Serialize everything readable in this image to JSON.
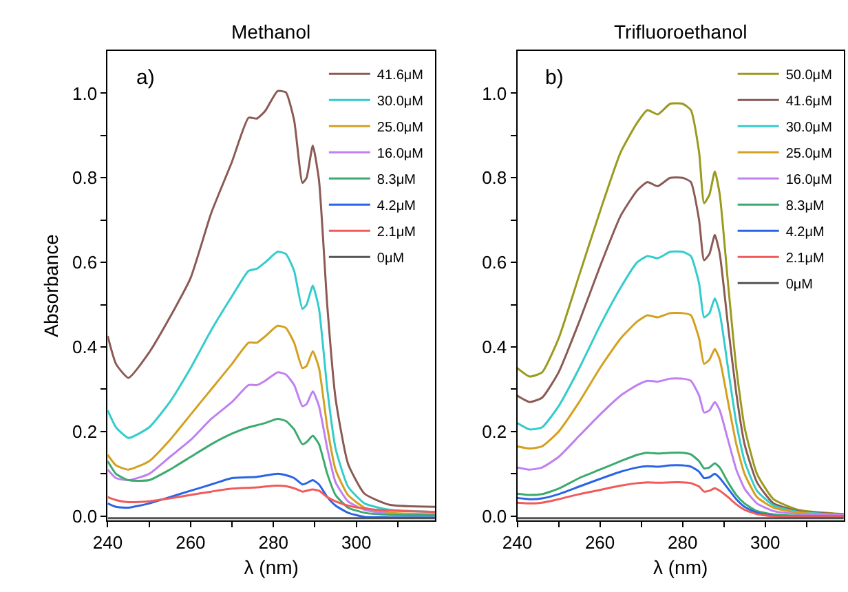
{
  "chart_data": [
    {
      "type": "line",
      "title": "Methanol",
      "xlabel": "λ (nm)",
      "ylabel": "Absorbance",
      "annotations": [
        "a)"
      ],
      "legend": "top right",
      "marker": "none",
      "line_style": "solid",
      "xlim": [
        240,
        319
      ],
      "ylim": [
        -0.01,
        1.1
      ],
      "xticks": [
        240,
        {
          "value": 250,
          "label": null
        },
        260,
        {
          "value": 270,
          "label": null
        },
        280,
        {
          "value": 290,
          "label": null
        },
        300,
        {
          "value": 310,
          "label": null
        }
      ],
      "yticks": [
        {
          "value": 0,
          "label": "0.0"
        },
        {
          "value": 0.1,
          "label": null
        },
        0.2,
        {
          "value": 0.3,
          "label": null
        },
        0.4,
        {
          "value": 0.5,
          "label": null
        },
        0.6,
        {
          "value": 0.7,
          "label": null
        },
        0.8,
        {
          "value": 0.9,
          "label": null
        },
        {
          "value": 1,
          "label": "1.0"
        }
      ],
      "x": [
        240,
        242,
        245,
        250,
        255,
        260,
        265,
        270,
        274,
        276,
        278,
        281,
        283,
        285,
        287,
        288,
        289.5,
        291,
        293,
        295,
        298,
        302,
        308,
        319
      ],
      "series": [
        {
          "name": "41.6μM",
          "color": "#8b5a55",
          "values": [
            0.426,
            0.36,
            0.327,
            0.387,
            0.47,
            0.563,
            0.717,
            0.838,
            0.942,
            0.94,
            0.958,
            1.005,
            1.002,
            0.936,
            0.788,
            0.8,
            0.876,
            0.794,
            0.497,
            0.278,
            0.124,
            0.053,
            0.027,
            0.022
          ]
        },
        {
          "name": "30.0μM",
          "color": "#33cccc",
          "values": [
            0.25,
            0.21,
            0.185,
            0.21,
            0.27,
            0.35,
            0.44,
            0.52,
            0.58,
            0.585,
            0.6,
            0.625,
            0.62,
            0.58,
            0.49,
            0.5,
            0.545,
            0.49,
            0.3,
            0.16,
            0.07,
            0.03,
            0.015,
            0.01
          ]
        },
        {
          "name": "25.0μM",
          "color": "#d4a020",
          "values": [
            0.145,
            0.12,
            0.11,
            0.13,
            0.18,
            0.24,
            0.3,
            0.36,
            0.41,
            0.41,
            0.425,
            0.45,
            0.445,
            0.41,
            0.35,
            0.355,
            0.39,
            0.35,
            0.21,
            0.11,
            0.05,
            0.02,
            0.008,
            0.005
          ]
        },
        {
          "name": "16.0μM",
          "color": "#c080f0",
          "values": [
            0.11,
            0.09,
            0.085,
            0.1,
            0.14,
            0.18,
            0.23,
            0.27,
            0.31,
            0.31,
            0.32,
            0.34,
            0.335,
            0.31,
            0.26,
            0.265,
            0.295,
            0.26,
            0.16,
            0.08,
            0.035,
            0.015,
            0.005,
            0.003
          ]
        },
        {
          "name": "8.3μM",
          "color": "#3caa6e",
          "values": [
            0.13,
            0.1,
            0.085,
            0.085,
            0.11,
            0.14,
            0.17,
            0.195,
            0.21,
            0.215,
            0.22,
            0.23,
            0.225,
            0.205,
            0.17,
            0.175,
            0.19,
            0.17,
            0.1,
            0.05,
            0.02,
            0.008,
            0.003,
            0.002
          ]
        },
        {
          "name": "4.2μM",
          "color": "#2a64e6",
          "values": [
            0.03,
            0.022,
            0.02,
            0.03,
            0.045,
            0.06,
            0.075,
            0.09,
            0.092,
            0.093,
            0.096,
            0.1,
            0.097,
            0.09,
            0.075,
            0.078,
            0.085,
            0.075,
            0.045,
            0.025,
            0.008,
            -0.002,
            -0.003,
            -0.003
          ]
        },
        {
          "name": "2.1μM",
          "color": "#f05a5a",
          "values": [
            0.045,
            0.038,
            0.033,
            0.035,
            0.042,
            0.05,
            0.058,
            0.065,
            0.067,
            0.068,
            0.07,
            0.072,
            0.071,
            0.066,
            0.058,
            0.06,
            0.063,
            0.06,
            0.045,
            0.035,
            0.025,
            0.018,
            0.013,
            0.01
          ]
        },
        {
          "name": "0μM",
          "color": "#555555",
          "values": [
            -0.005,
            -0.005,
            -0.005,
            -0.005,
            -0.005,
            -0.005,
            -0.005,
            -0.005,
            -0.005,
            -0.005,
            -0.005,
            -0.005,
            -0.005,
            -0.005,
            -0.005,
            -0.005,
            -0.005,
            -0.005,
            -0.005,
            -0.005,
            -0.005,
            -0.005,
            -0.005,
            -0.005
          ]
        }
      ]
    },
    {
      "type": "line",
      "title": "Trifluoroethanol",
      "xlabel": "λ (nm)",
      "annotations": [
        "b)"
      ],
      "legend": "top right",
      "marker": "none",
      "line_style": "solid",
      "xlim": [
        240,
        319
      ],
      "ylim": [
        -0.01,
        1.1
      ],
      "xticks": [
        240,
        {
          "value": 250,
          "label": null
        },
        260,
        {
          "value": 270,
          "label": null
        },
        280,
        {
          "value": 290,
          "label": null
        },
        300,
        {
          "value": 310,
          "label": null
        }
      ],
      "yticks": [
        {
          "value": 0,
          "label": "0.0"
        },
        {
          "value": 0.1,
          "label": null
        },
        0.2,
        {
          "value": 0.3,
          "label": null
        },
        0.4,
        {
          "value": 0.5,
          "label": null
        },
        0.6,
        {
          "value": 0.7,
          "label": null
        },
        0.8,
        {
          "value": 0.9,
          "label": null
        },
        {
          "value": 1,
          "label": "1.0"
        }
      ],
      "x": [
        240,
        243,
        246,
        250,
        255,
        260,
        265,
        269,
        271.5,
        274,
        277,
        280,
        282,
        284,
        285.2,
        286.5,
        287.8,
        289,
        291,
        293,
        295,
        298,
        302,
        308,
        319
      ],
      "series": [
        {
          "name": "50.0μM",
          "color": "#9a9a1e",
          "values": [
            0.35,
            0.33,
            0.34,
            0.42,
            0.57,
            0.72,
            0.86,
            0.93,
            0.96,
            0.95,
            0.975,
            0.975,
            0.96,
            0.86,
            0.74,
            0.76,
            0.815,
            0.76,
            0.55,
            0.35,
            0.21,
            0.1,
            0.04,
            0.015,
            0.005
          ]
        },
        {
          "name": "41.6μM",
          "color": "#8b5a55",
          "values": [
            0.285,
            0.27,
            0.28,
            0.34,
            0.46,
            0.59,
            0.71,
            0.77,
            0.79,
            0.78,
            0.8,
            0.8,
            0.79,
            0.7,
            0.605,
            0.62,
            0.665,
            0.62,
            0.45,
            0.29,
            0.17,
            0.08,
            0.03,
            0.012,
            0.004
          ]
        },
        {
          "name": "30.0μM",
          "color": "#33cccc",
          "values": [
            0.22,
            0.205,
            0.21,
            0.26,
            0.35,
            0.45,
            0.54,
            0.6,
            0.615,
            0.61,
            0.625,
            0.625,
            0.615,
            0.55,
            0.47,
            0.48,
            0.515,
            0.48,
            0.35,
            0.22,
            0.13,
            0.06,
            0.025,
            0.01,
            0.003
          ]
        },
        {
          "name": "25.0μM",
          "color": "#d4a020",
          "values": [
            0.165,
            0.16,
            0.165,
            0.2,
            0.27,
            0.35,
            0.42,
            0.46,
            0.475,
            0.47,
            0.48,
            0.48,
            0.475,
            0.42,
            0.36,
            0.37,
            0.395,
            0.37,
            0.27,
            0.17,
            0.1,
            0.045,
            0.02,
            0.008,
            0.003
          ]
        },
        {
          "name": "16.0μM",
          "color": "#c080f0",
          "values": [
            0.115,
            0.11,
            0.115,
            0.14,
            0.19,
            0.24,
            0.285,
            0.31,
            0.32,
            0.318,
            0.325,
            0.325,
            0.32,
            0.285,
            0.245,
            0.25,
            0.27,
            0.25,
            0.18,
            0.11,
            0.065,
            0.03,
            0.012,
            0.005,
            0.002
          ]
        },
        {
          "name": "8.3μM",
          "color": "#3caa6e",
          "values": [
            0.053,
            0.05,
            0.052,
            0.065,
            0.09,
            0.11,
            0.13,
            0.145,
            0.15,
            0.148,
            0.15,
            0.15,
            0.146,
            0.13,
            0.113,
            0.115,
            0.125,
            0.115,
            0.08,
            0.05,
            0.03,
            0.012,
            0.004,
            0.001,
            0.0
          ]
        },
        {
          "name": "4.2μM",
          "color": "#2a64e6",
          "values": [
            0.043,
            0.04,
            0.042,
            0.052,
            0.07,
            0.088,
            0.105,
            0.115,
            0.118,
            0.117,
            0.12,
            0.12,
            0.117,
            0.105,
            0.09,
            0.092,
            0.1,
            0.09,
            0.065,
            0.04,
            0.022,
            0.008,
            0.001,
            -0.002,
            -0.002
          ]
        },
        {
          "name": "2.1μM",
          "color": "#f05a5a",
          "values": [
            0.032,
            0.03,
            0.032,
            0.04,
            0.052,
            0.062,
            0.072,
            0.078,
            0.08,
            0.079,
            0.08,
            0.08,
            0.078,
            0.07,
            0.058,
            0.06,
            0.066,
            0.06,
            0.045,
            0.028,
            0.015,
            0.005,
            0.0,
            -0.002,
            -0.002
          ]
        },
        {
          "name": "0μM",
          "color": "#555555",
          "values": [
            -0.005,
            -0.005,
            -0.005,
            -0.005,
            -0.005,
            -0.005,
            -0.005,
            -0.005,
            -0.005,
            -0.005,
            -0.005,
            -0.005,
            -0.005,
            -0.005,
            -0.005,
            -0.005,
            -0.005,
            -0.005,
            -0.005,
            -0.005,
            -0.005,
            -0.005,
            -0.005,
            -0.005,
            -0.005
          ]
        }
      ]
    }
  ]
}
